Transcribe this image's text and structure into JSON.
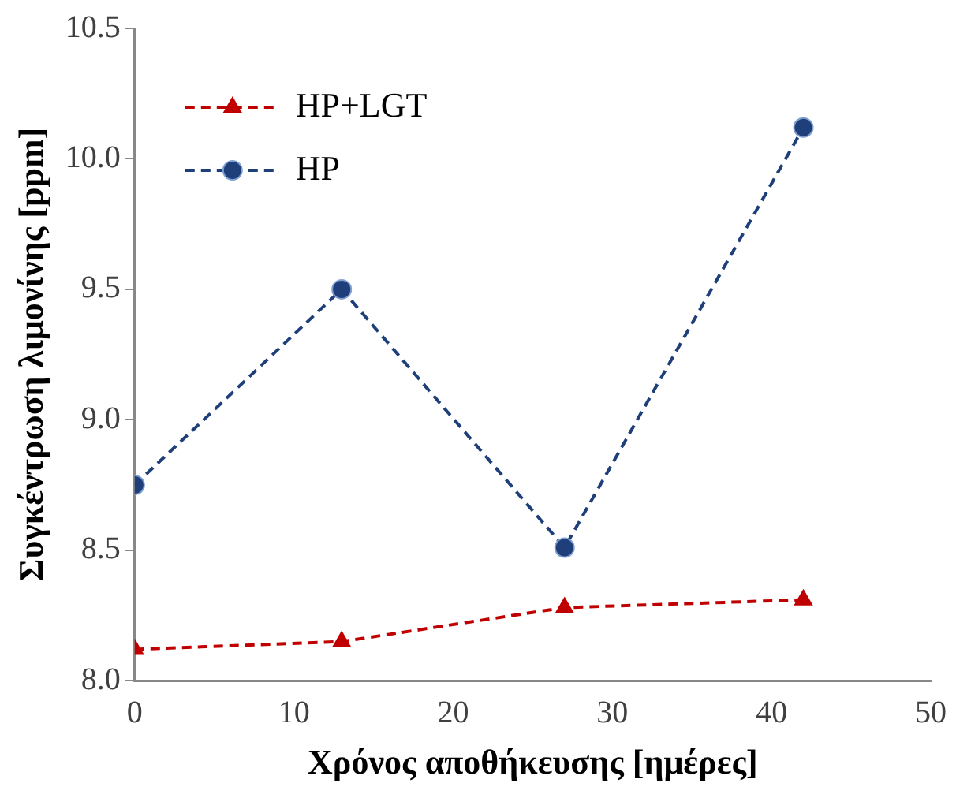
{
  "chart_data": {
    "type": "line",
    "xlabel": "Χρόνος αποθήκευσης [ημέρες]",
    "ylabel": "Συγκέντρωση λιμονίνης [ppm]",
    "x": [
      0,
      13,
      27,
      42
    ],
    "series": [
      {
        "name": "HP+LGT",
        "color": "#c00000",
        "marker": "triangle",
        "values": [
          8.12,
          8.15,
          8.28,
          8.31
        ]
      },
      {
        "name": "HP",
        "color": "#1f3f7a",
        "marker": "circle",
        "values": [
          8.75,
          9.5,
          8.51,
          10.12
        ]
      }
    ],
    "xlim": [
      0,
      50
    ],
    "xticks": [
      0,
      10,
      20,
      30,
      40,
      50
    ],
    "ylim": [
      8.0,
      10.5
    ],
    "yticks": [
      {
        "value": 8.0,
        "label": "8.0"
      },
      {
        "value": 8.5,
        "label": "8.5"
      },
      {
        "value": 9.0,
        "label": "9.0"
      },
      {
        "value": 9.5,
        "label": "9.5"
      },
      {
        "value": 10.0,
        "label": "10.0"
      },
      {
        "value": 10.5,
        "label": "10.5"
      }
    ],
    "grid": false,
    "legend": "top left",
    "line_style": "dashed"
  }
}
